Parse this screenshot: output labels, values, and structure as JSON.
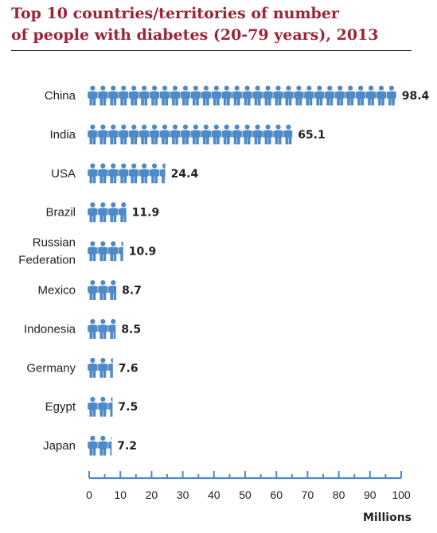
{
  "title_line1": "Top 10 countries/territories of number",
  "title_line2": "of people with diabetes (20-79 years), 2013",
  "colors": {
    "title": "#9b2438",
    "icon": "#4e8ac7",
    "axis": "#4e8ac7",
    "text": "#222222"
  },
  "icon_name": "person-icon",
  "chart_data": {
    "type": "bar",
    "categories": [
      "China",
      "India",
      "USA",
      "Brazil",
      "Russian Federation",
      "Mexico",
      "Indonesia",
      "Germany",
      "Egypt",
      "Japan"
    ],
    "category_lines": [
      [
        "China"
      ],
      [
        "India"
      ],
      [
        "USA"
      ],
      [
        "Brazil"
      ],
      [
        "Russian",
        "Federation"
      ],
      [
        "Mexico"
      ],
      [
        "Indonesia"
      ],
      [
        "Germany"
      ],
      [
        "Egypt"
      ],
      [
        "Japan"
      ]
    ],
    "values": [
      98.4,
      65.1,
      24.4,
      11.9,
      10.9,
      8.7,
      8.5,
      7.6,
      7.5,
      7.2
    ],
    "value_labels": [
      "98.4",
      "65.1",
      "24.4",
      "11.9",
      "10.9",
      "8.7",
      "8.5",
      "7.6",
      "7.5",
      "7.2"
    ],
    "xlim": [
      0,
      100
    ],
    "xticks": [
      0,
      10,
      20,
      30,
      40,
      50,
      60,
      70,
      80,
      90,
      100
    ],
    "xlabel": "Millions",
    "orientation": "horizontal",
    "icon_unit": 3
  }
}
